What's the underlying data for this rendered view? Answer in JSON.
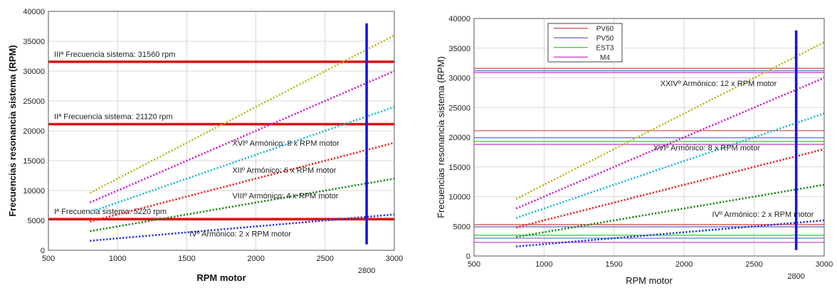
{
  "chart_data": [
    {
      "type": "line",
      "title": "",
      "xlabel": "RPM motor",
      "ylabel": "Frecuencias resonancia sistema (RPM)",
      "xlim": [
        500,
        3000
      ],
      "ylim": [
        0,
        40000
      ],
      "xticks": [
        500,
        1000,
        1500,
        2000,
        2500,
        3000
      ],
      "yticks": [
        0,
        5000,
        10000,
        15000,
        20000,
        25000,
        30000,
        35000,
        40000
      ],
      "ytick_labels": [
        "0",
        "5000",
        "10000",
        "15000",
        "20000",
        "25000",
        "30000",
        "35000",
        "40000"
      ],
      "extra_xtick": {
        "value": 2800,
        "label": "2800"
      },
      "grid": true,
      "series": [
        {
          "multiplier": 2,
          "color": "#2233dd",
          "x": [
            800,
            3000
          ],
          "y": [
            1600,
            6000
          ]
        },
        {
          "multiplier": 4,
          "color": "#1a8a1a",
          "x": [
            800,
            3000
          ],
          "y": [
            3200,
            12000
          ]
        },
        {
          "multiplier": 6,
          "color": "#ee2222",
          "x": [
            800,
            3000
          ],
          "y": [
            4800,
            18000
          ]
        },
        {
          "multiplier": 8,
          "color": "#22bbcc",
          "x": [
            800,
            3000
          ],
          "y": [
            6400,
            24000
          ]
        },
        {
          "multiplier": 10,
          "color": "#cc22cc",
          "x": [
            800,
            3000
          ],
          "y": [
            8000,
            30000
          ]
        },
        {
          "multiplier": 12,
          "color": "#bbbb22",
          "x": [
            800,
            3000
          ],
          "y": [
            9600,
            36000
          ]
        }
      ],
      "hlines": [
        {
          "y": 31560,
          "color": "#dd1111",
          "label": "IIIª Frecuencia sistema: 31560 rpm"
        },
        {
          "y": 21120,
          "color": "#dd1111",
          "label": "IIª Frecuencia sistema: 21120 rpm"
        },
        {
          "y": 5220,
          "color": "#dd1111",
          "label": "Iª Frecuencia sistema: 5220 rpm"
        }
      ],
      "vline": {
        "x": 2800,
        "y0": 1000,
        "y1": 38000,
        "color": "#1111ee"
      },
      "annotations": [
        {
          "text": "XVIº Armónico: 8 x RPM motor",
          "x": 1830,
          "y": 17500
        },
        {
          "text": "XIIº Armónico: 6 x RPM motor",
          "x": 1830,
          "y": 13000
        },
        {
          "text": "VIIIº Armónico: 4 x RPM motor",
          "x": 1830,
          "y": 8700
        },
        {
          "text": "IVº Armónico: 2 x RPM motor",
          "x": 1520,
          "y": 2300
        }
      ]
    },
    {
      "type": "line",
      "title": "",
      "xlabel": "RPM motor",
      "ylabel": "Frecuencias resonancia sistema (RPM)",
      "xlim": [
        500,
        3000
      ],
      "ylim": [
        0,
        40000
      ],
      "xticks": [
        500,
        1000,
        1500,
        2000,
        2500,
        3000
      ],
      "yticks": [
        0,
        5000,
        10000,
        15000,
        20000,
        25000,
        30000,
        35000,
        40000
      ],
      "ytick_labels": [
        "0",
        "5000",
        "10000",
        "15000",
        "20000",
        "25000",
        "30000",
        "35000",
        "40000"
      ],
      "extra_xtick": {
        "value": 2800,
        "label": "2800"
      },
      "grid": true,
      "legend": {
        "position": "top-left",
        "entries": [
          {
            "name": "PV60",
            "color": "#dd4444"
          },
          {
            "name": "PV50",
            "color": "#6666dd"
          },
          {
            "name": "EST3",
            "color": "#33cc33"
          },
          {
            "name": "M4",
            "color": "#cc33cc"
          }
        ]
      },
      "series": [
        {
          "multiplier": 2,
          "color": "#2233dd",
          "x": [
            800,
            3000
          ],
          "y": [
            1600,
            6000
          ]
        },
        {
          "multiplier": 4,
          "color": "#1a8a1a",
          "x": [
            800,
            3000
          ],
          "y": [
            3200,
            12000
          ]
        },
        {
          "multiplier": 6,
          "color": "#ee2222",
          "x": [
            800,
            3000
          ],
          "y": [
            4800,
            18000
          ]
        },
        {
          "multiplier": 8,
          "color": "#22bbcc",
          "x": [
            800,
            3000
          ],
          "y": [
            6400,
            24000
          ]
        },
        {
          "multiplier": 10,
          "color": "#cc22cc",
          "x": [
            800,
            3000
          ],
          "y": [
            8000,
            30000
          ]
        },
        {
          "multiplier": 12,
          "color": "#bbbb22",
          "x": [
            800,
            3000
          ],
          "y": [
            9600,
            36000
          ]
        }
      ],
      "hlines": [
        {
          "y": 31600,
          "color": "#dd4444",
          "width": 1.2
        },
        {
          "y": 31200,
          "color": "#6666dd",
          "width": 1.2
        },
        {
          "y": 30900,
          "color": "#cc33cc",
          "width": 1.2
        },
        {
          "y": 21100,
          "color": "#dd4444",
          "width": 1.2
        },
        {
          "y": 19900,
          "color": "#6666dd",
          "width": 1.2
        },
        {
          "y": 19300,
          "color": "#33cc33",
          "width": 1.2
        },
        {
          "y": 18800,
          "color": "#cc33cc",
          "width": 1.2
        },
        {
          "y": 5300,
          "color": "#dd4444",
          "width": 1.2
        },
        {
          "y": 4900,
          "color": "#6666dd",
          "width": 1.2
        },
        {
          "y": 3500,
          "color": "#33cc33",
          "width": 1.2
        },
        {
          "y": 3000,
          "color": "#6666dd",
          "width": 1.2
        },
        {
          "y": 2300,
          "color": "#cc33cc",
          "width": 1.2
        }
      ],
      "vline": {
        "x": 2800,
        "y0": 1000,
        "y1": 38000,
        "color": "#1111ee"
      },
      "annotations": [
        {
          "text": "XXIVº Armónico: 12 x RPM motor",
          "x": 1830,
          "y": 28600
        },
        {
          "text": "XVIº Armónico: 8 x RPM motor",
          "x": 1780,
          "y": 17800
        },
        {
          "text": "IVº Armónico: 2 x RPM motor",
          "x": 2200,
          "y": 6600
        }
      ]
    }
  ]
}
